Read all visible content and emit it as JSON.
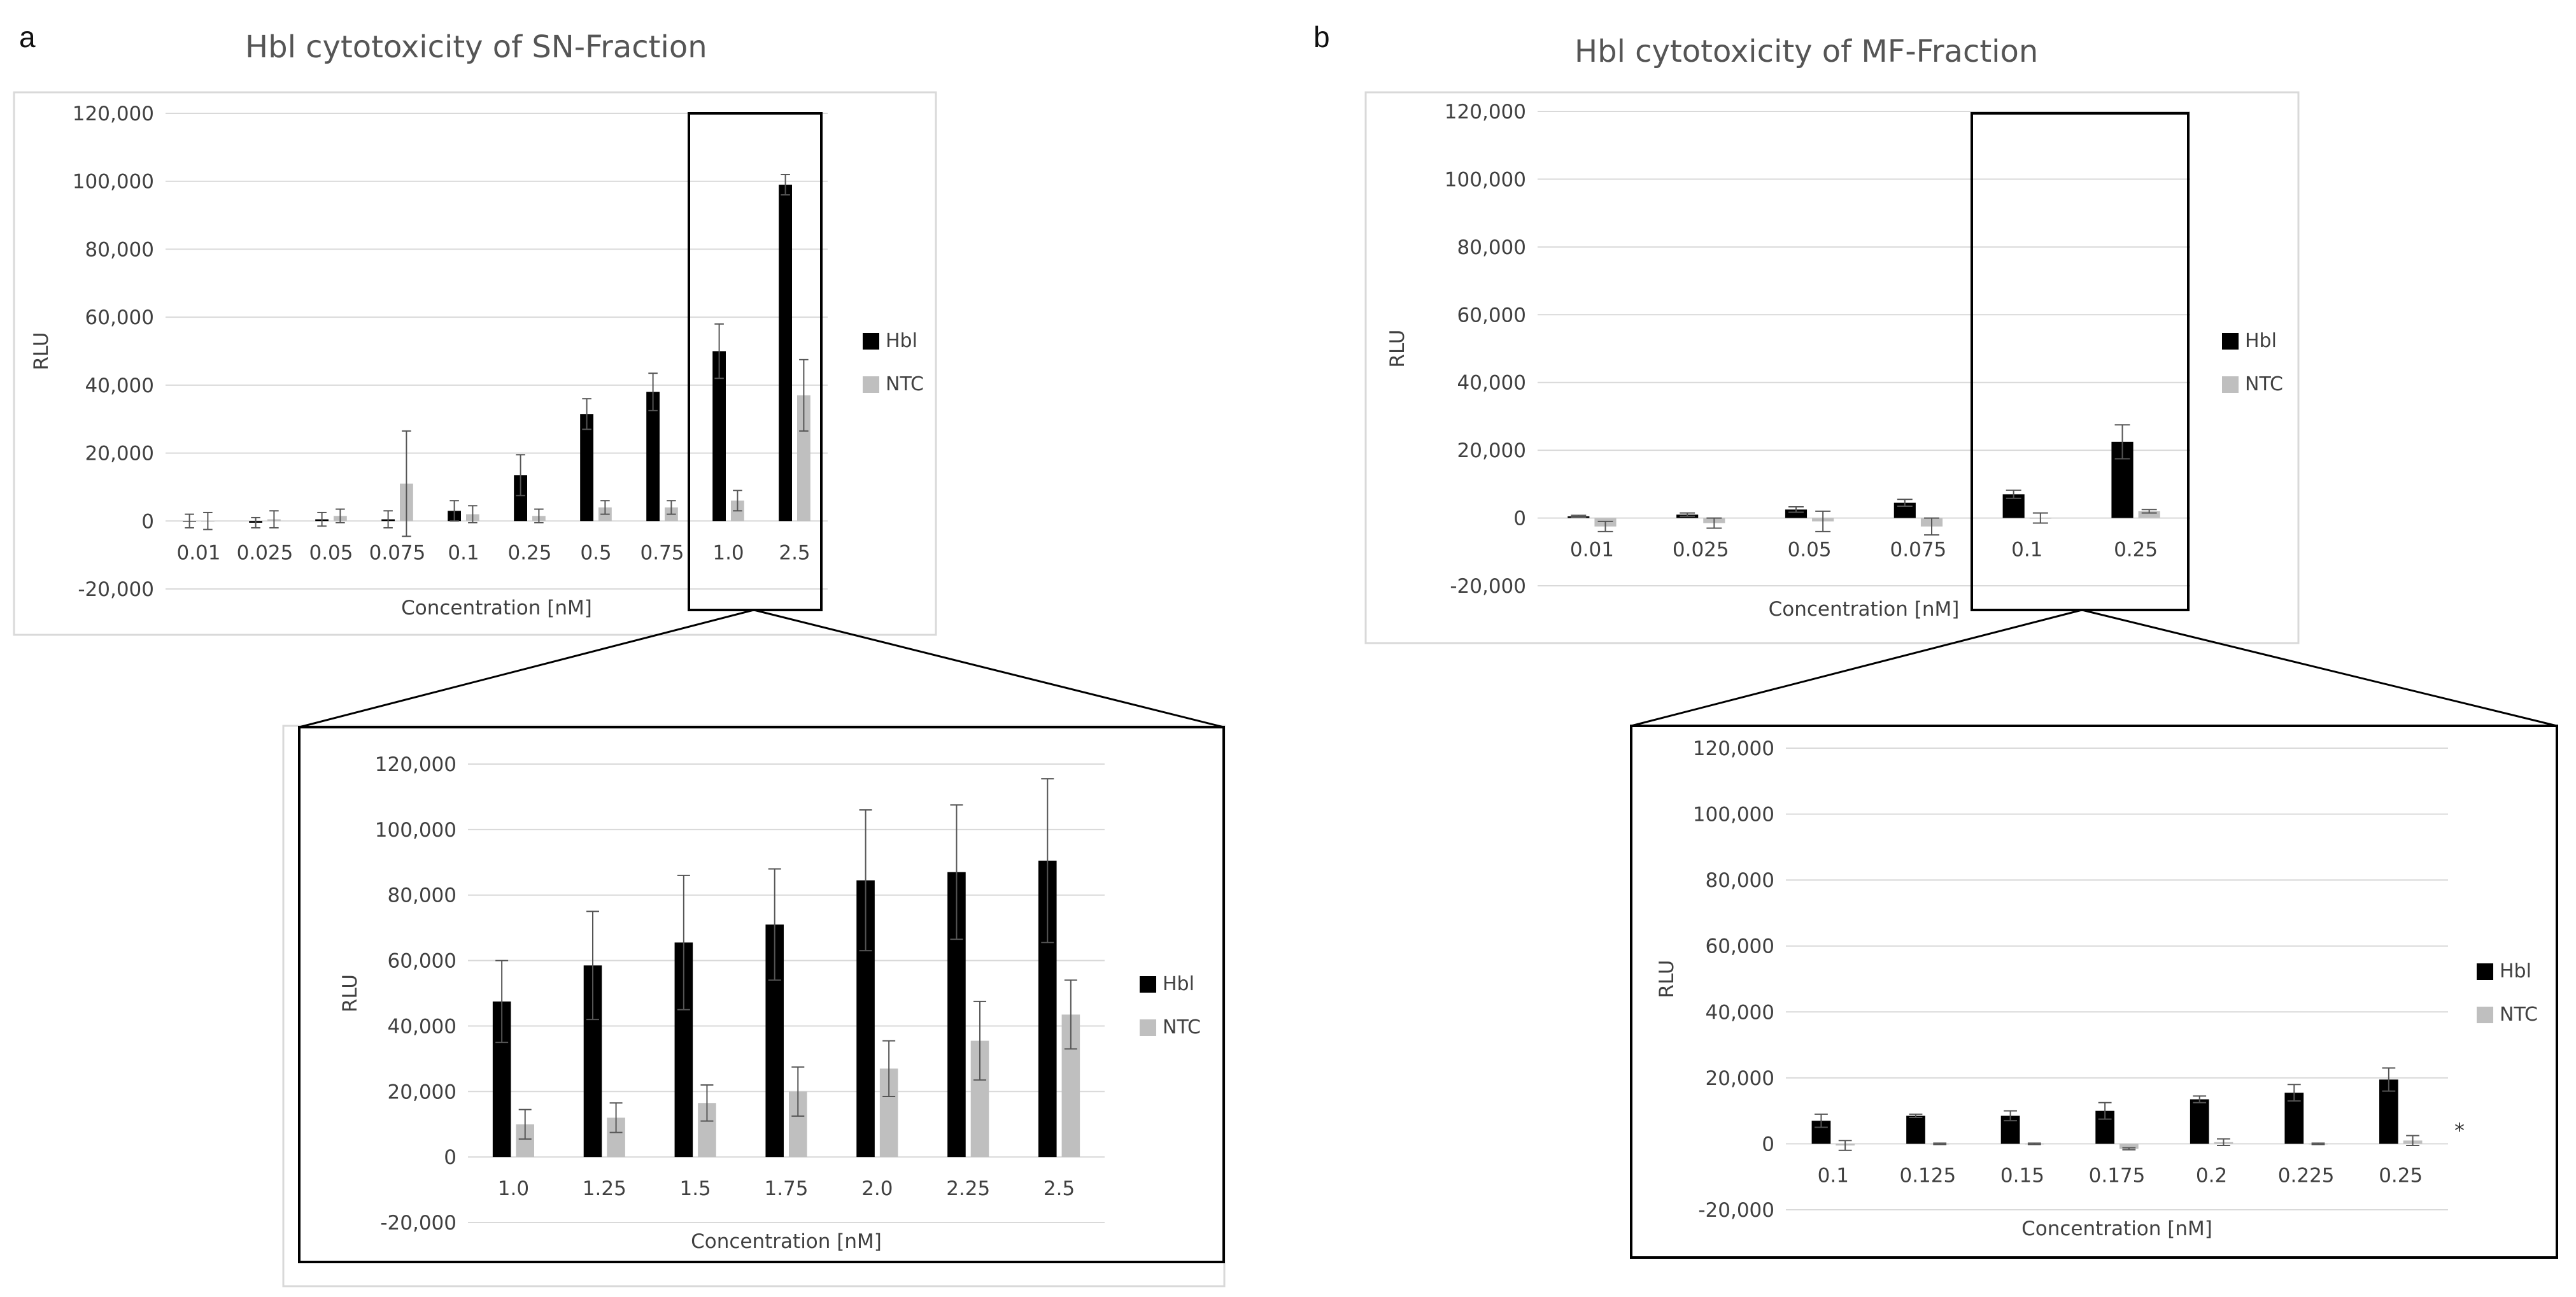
{
  "panels": [
    {
      "letter": "a",
      "title": "Hbl cytotoxicity of SN-Fraction"
    },
    {
      "letter": "b",
      "title": "Hbl cytotoxicity of MF-Fraction"
    }
  ],
  "colors": {
    "hbl": "#000000",
    "ntc": "#bfbfbf",
    "grid": "#d9d9d9",
    "box": "#000000",
    "frame": "#d9d9d9"
  },
  "chart_data": [
    {
      "id": "sn-main",
      "type": "bar",
      "title": "Hbl cytotoxicity of SN-Fraction",
      "xlabel": "Concentration [nM]",
      "ylabel": "RLU",
      "ylim": [
        -20000,
        120000
      ],
      "yticks": [
        -20000,
        0,
        20000,
        40000,
        60000,
        80000,
        100000,
        120000
      ],
      "ytick_labels": [
        "-20,000",
        "0",
        "20,000",
        "40,000",
        "60,000",
        "80,000",
        "100,000",
        "120,000"
      ],
      "grid": true,
      "legend": [
        "Hbl",
        "NTC"
      ],
      "legend_position": "right",
      "categories": [
        "0.01",
        "0.025",
        "0.05",
        "0.075",
        "0.1",
        "0.25",
        "0.5",
        "0.75",
        "1.0",
        "2.5"
      ],
      "series": [
        {
          "name": "Hbl",
          "values": [
            0,
            -500,
            500,
            500,
            3000,
            13500,
            31500,
            38000,
            50000,
            99000
          ],
          "errors": [
            2000,
            1500,
            2000,
            2500,
            3000,
            6000,
            4500,
            5500,
            8000,
            3000
          ]
        },
        {
          "name": "NTC",
          "values": [
            0,
            500,
            1500,
            11000,
            2000,
            1500,
            4000,
            4000,
            6000,
            37000
          ],
          "errors": [
            2500,
            2500,
            2000,
            15500,
            2500,
            2000,
            2000,
            2000,
            3000,
            10500
          ]
        }
      ]
    },
    {
      "id": "sn-zoom",
      "type": "bar",
      "title": "",
      "xlabel": "Concentration [nM]",
      "ylabel": "RLU",
      "ylim": [
        -20000,
        120000
      ],
      "yticks": [
        -20000,
        0,
        20000,
        40000,
        60000,
        80000,
        100000,
        120000
      ],
      "ytick_labels": [
        "-20,000",
        "0",
        "20,000",
        "40,000",
        "60,000",
        "80,000",
        "100,000",
        "120,000"
      ],
      "grid": true,
      "legend": [
        "Hbl",
        "NTC"
      ],
      "legend_position": "right",
      "categories": [
        "1.0",
        "1.25",
        "1.5",
        "1.75",
        "2.0",
        "2.25",
        "2.5"
      ],
      "series": [
        {
          "name": "Hbl",
          "values": [
            47500,
            58500,
            65500,
            71000,
            84500,
            87000,
            90500
          ],
          "errors": [
            12500,
            16500,
            20500,
            17000,
            21500,
            20500,
            25000
          ]
        },
        {
          "name": "NTC",
          "values": [
            10000,
            12000,
            16500,
            20000,
            27000,
            35500,
            43500
          ],
          "errors": [
            4500,
            4500,
            5500,
            7500,
            8500,
            12000,
            10500
          ]
        }
      ]
    },
    {
      "id": "mf-main",
      "type": "bar",
      "title": "Hbl cytotoxicity of MF-Fraction",
      "xlabel": "Concentration [nM]",
      "ylabel": "RLU",
      "ylim": [
        -20000,
        120000
      ],
      "yticks": [
        -20000,
        0,
        20000,
        40000,
        60000,
        80000,
        100000,
        120000
      ],
      "ytick_labels": [
        "-20,000",
        "0",
        "20,000",
        "40,000",
        "60,000",
        "80,000",
        "100,000",
        "120,000"
      ],
      "grid": true,
      "legend": [
        "Hbl",
        "NTC"
      ],
      "legend_position": "right",
      "categories": [
        "0.01",
        "0.025",
        "0.05",
        "0.075",
        "0.1",
        "0.25"
      ],
      "series": [
        {
          "name": "Hbl",
          "values": [
            500,
            1000,
            2500,
            4500,
            7000,
            22500
          ],
          "errors": [
            300,
            500,
            800,
            1000,
            1200,
            5000
          ]
        },
        {
          "name": "NTC",
          "values": [
            -2500,
            -1500,
            -1000,
            -2500,
            0,
            2000
          ],
          "errors": [
            1500,
            1500,
            3000,
            2500,
            1500,
            500
          ]
        }
      ]
    },
    {
      "id": "mf-zoom",
      "type": "bar",
      "title": "",
      "xlabel": "Concentration [nM]",
      "ylabel": "RLU",
      "ylim": [
        -20000,
        120000
      ],
      "yticks": [
        -20000,
        0,
        20000,
        40000,
        60000,
        80000,
        100000,
        120000
      ],
      "ytick_labels": [
        "-20,000",
        "0",
        "20,000",
        "40,000",
        "60,000",
        "80,000",
        "100,000",
        "120,000"
      ],
      "grid": true,
      "legend": [
        "Hbl",
        "NTC"
      ],
      "legend_position": "right",
      "categories": [
        "0.1",
        "0.125",
        "0.15",
        "0.175",
        "0.2",
        "0.225",
        "0.25"
      ],
      "series": [
        {
          "name": "Hbl",
          "values": [
            7000,
            8500,
            8500,
            10000,
            13500,
            15500,
            19500
          ],
          "errors": [
            2000,
            500,
            1500,
            2500,
            1000,
            2500,
            3500
          ]
        },
        {
          "name": "NTC",
          "values": [
            -500,
            0,
            0,
            -1500,
            500,
            0,
            1000
          ],
          "errors": [
            1500,
            200,
            200,
            300,
            1000,
            200,
            1500
          ]
        }
      ],
      "annotation": "*"
    }
  ]
}
